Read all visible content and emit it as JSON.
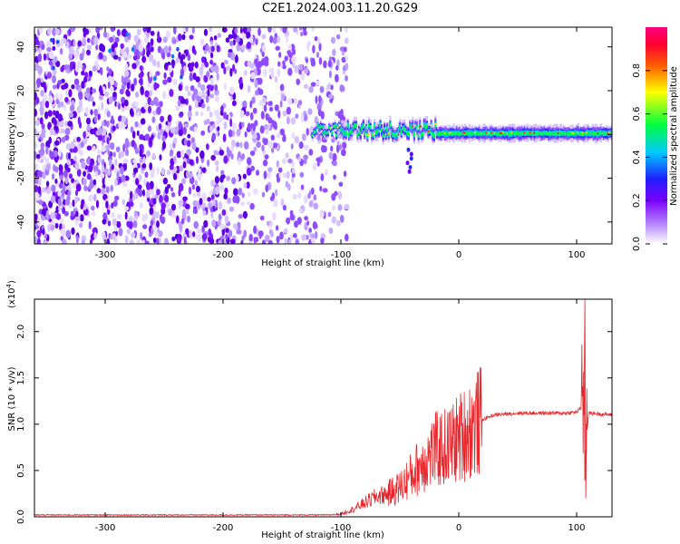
{
  "title": "C2E1.2024.003.11.20.G29",
  "chart_data": [
    {
      "type": "heatmap",
      "xlabel": "Height of straight line (km)",
      "ylabel": "Frequency (Hz)",
      "xlim": [
        -360,
        130
      ],
      "ylim": [
        -50,
        49
      ],
      "xticks": [
        -300,
        -200,
        -100,
        0,
        100
      ],
      "yticks": [
        -40,
        -20,
        0,
        20,
        40
      ],
      "colorbar": {
        "label": "Normalized spectral amplitude",
        "ticks": [
          0.0,
          0.2,
          0.4,
          0.6,
          0.8
        ],
        "range": [
          0,
          1
        ],
        "colors": [
          "#ffffff",
          "#8a2be2",
          "#0000ff",
          "#00c8ff",
          "#00ff00",
          "#ffff00",
          "#ff8000",
          "#ff0000",
          "#ff0080"
        ]
      },
      "features": {
        "noise_region_x": [
          -360,
          -100
        ],
        "signal_band_x": [
          -125,
          130
        ],
        "signal_center_hz": 0
      }
    },
    {
      "type": "line",
      "xlabel": "Height of straight line (km)",
      "ylabel": "SNR (10 * v/v)",
      "y_multiplier": "(x10",
      "y_multiplier_exp": "4",
      "y_multiplier_close": ")",
      "xlim": [
        -360,
        130
      ],
      "ylim": [
        0,
        2.35
      ],
      "xticks": [
        -300,
        -200,
        -100,
        0,
        100
      ],
      "yticks": [
        0.0,
        0.5,
        1.0,
        1.5,
        2.0
      ],
      "color": "#e8262b",
      "series": [
        {
          "x": [
            -360,
            -300,
            -200,
            -110,
            -100,
            -90,
            -80,
            -70,
            -60,
            -50,
            -40,
            -30,
            -20,
            -10,
            0,
            10,
            20,
            30,
            50,
            70,
            90,
            100,
            105,
            107,
            110,
            130
          ],
          "y": [
            0.02,
            0.02,
            0.02,
            0.02,
            0.03,
            0.08,
            0.15,
            0.22,
            0.25,
            0.32,
            0.45,
            0.6,
            0.72,
            0.75,
            0.85,
            0.95,
            1.05,
            1.1,
            1.12,
            1.12,
            1.12,
            1.13,
            1.2,
            0.6,
            1.12,
            1.1
          ]
        }
      ]
    }
  ]
}
